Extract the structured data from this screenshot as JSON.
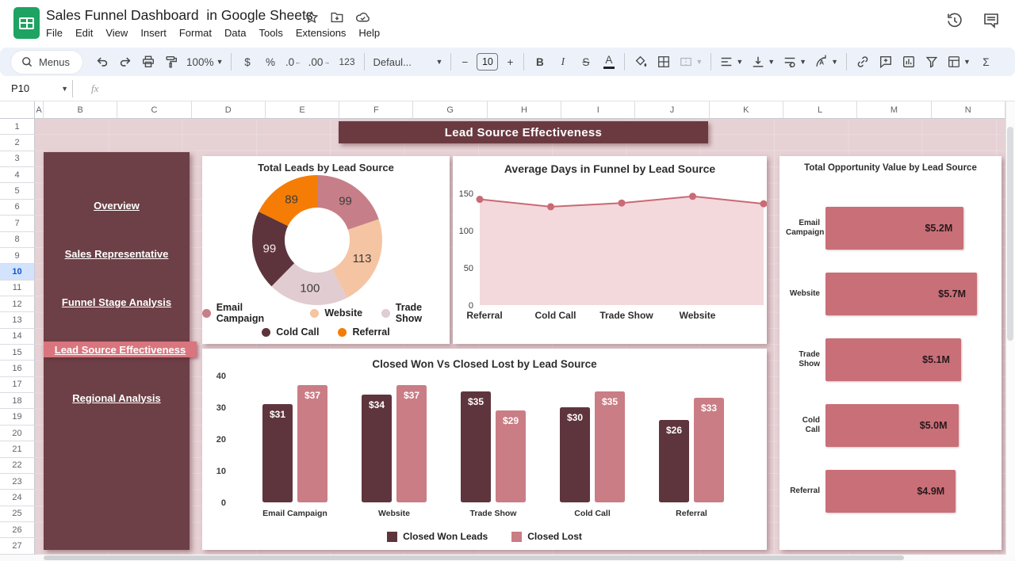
{
  "titlebar": {
    "doc_title": "Sales Funnel Dashboard  in Google Sheets",
    "menu_items": [
      "File",
      "Edit",
      "View",
      "Insert",
      "Format",
      "Data",
      "Tools",
      "Extensions",
      "Help"
    ],
    "action_icon_names": [
      "star-icon",
      "move-folder-icon",
      "cloud-status-icon"
    ],
    "right_icon_names": [
      "version-history-icon",
      "comments-icon"
    ]
  },
  "toolbar": {
    "menus_label": "Menus",
    "zoom_value": "100%",
    "currency_label": "$",
    "percent_label": "%",
    "decimal_decrease_label": ".0",
    "decimal_increase_label": ".00",
    "number_format_label": "123",
    "font_name": "Defaul...",
    "minus_label": "−",
    "font_size": "10",
    "plus_label": "+",
    "bold_label": "B",
    "italic_label": "I",
    "strikethrough_label": "S",
    "text_color_label": "A",
    "sum_label": "Σ",
    "icon_names": [
      "search-icon",
      "undo-icon",
      "redo-icon",
      "print-icon",
      "paint-format-icon",
      "fill-color-icon",
      "borders-icon",
      "merge-cells-icon",
      "align-icon",
      "vertical-align-icon",
      "text-wrap-icon",
      "text-rotate-icon",
      "link-icon",
      "add-comment-icon",
      "insert-chart-icon",
      "filter-icon",
      "table-views-icon"
    ]
  },
  "formula_bar": {
    "name_box": "P10",
    "fx_label": "fx"
  },
  "grid": {
    "column_headers": [
      "A",
      "B",
      "C",
      "D",
      "E",
      "F",
      "G",
      "H",
      "I",
      "J",
      "K",
      "L",
      "M",
      "N"
    ],
    "row_numbers": [
      "1",
      "2",
      "3",
      "4",
      "5",
      "6",
      "7",
      "8",
      "9",
      "10",
      "11",
      "12",
      "13",
      "14",
      "15",
      "16",
      "17",
      "18",
      "19",
      "20",
      "21",
      "22",
      "23",
      "24",
      "25",
      "26",
      "27"
    ],
    "selected_row": "10"
  },
  "dashboard": {
    "banner_title": "Lead Source Effectiveness",
    "nav_items": [
      {
        "label": "Overview",
        "active": false
      },
      {
        "label": "Sales Representative",
        "active": false
      },
      {
        "label": "Funnel Stage Analysis",
        "active": false
      },
      {
        "label": "Lead Source Effectiveness",
        "active": true
      },
      {
        "label": "Regional Analysis",
        "active": false
      }
    ],
    "colors": {
      "maroon_dark": "#6b3a41",
      "sidebar_bg": "#6d3f46",
      "active_pink": "#d9757e",
      "page_bg": "#e6d1d5"
    }
  },
  "chart_data": [
    {
      "type": "pie",
      "donut": true,
      "title": "Total Leads by Lead Source",
      "labels": [
        "Email Campaign",
        "Website",
        "Trade Show",
        "Cold Call",
        "Referral"
      ],
      "values": [
        99,
        113,
        100,
        99,
        89
      ],
      "colors": [
        "#c67f88",
        "#f5c4a2",
        "#e1ccd1",
        "#5e343c",
        "#f57d05"
      ],
      "legend_rows": [
        [
          "Email Campaign",
          "Website",
          "Trade Show"
        ],
        [
          "Cold Call",
          "Referral"
        ]
      ],
      "legend_position": "bottom"
    },
    {
      "type": "area",
      "title": "Average Days in Funnel by Lead Source",
      "x": [
        "Referral",
        "Cold Call",
        "Trade Show",
        "Website",
        ""
      ],
      "values": [
        142,
        132,
        137,
        146,
        136
      ],
      "ylim": [
        0,
        150
      ],
      "yticks": [
        0,
        50,
        100,
        150
      ],
      "line_color": "#c96a74",
      "fill_color": "#f3d9dc",
      "grid": false
    },
    {
      "type": "bar",
      "orientation": "horizontal",
      "title": "Total Opportunity Value by Lead Source",
      "categories": [
        "Email Campaign",
        "Website",
        "Trade Show",
        "Cold Call",
        "Referral"
      ],
      "values": [
        5.2,
        5.7,
        5.1,
        5.0,
        4.9
      ],
      "value_labels": [
        "$5.2M",
        "$5.7M",
        "$5.1M",
        "$5.0M",
        "$4.9M"
      ],
      "bar_color": "#c96f78",
      "xlim": [
        0,
        5.7
      ]
    },
    {
      "type": "bar",
      "title": "Closed Won Vs Closed Lost by Lead Source",
      "categories": [
        "Email Campaign",
        "Website",
        "Trade Show",
        "Cold Call",
        "Referral"
      ],
      "series": [
        {
          "name": "Closed Won Leads",
          "color": "#5f353d",
          "values": [
            31,
            34,
            35,
            30,
            26
          ],
          "value_labels": [
            "$31",
            "$34",
            "$35",
            "$30",
            "$26"
          ]
        },
        {
          "name": "Closed Lost",
          "color": "#ca7d85",
          "values": [
            37,
            37,
            29,
            35,
            33
          ],
          "value_labels": [
            "$37",
            "$37",
            "$29",
            "$35",
            "$33"
          ]
        }
      ],
      "ylim": [
        0,
        40
      ],
      "yticks": [
        0,
        10,
        20,
        30,
        40
      ],
      "legend_position": "bottom"
    }
  ]
}
